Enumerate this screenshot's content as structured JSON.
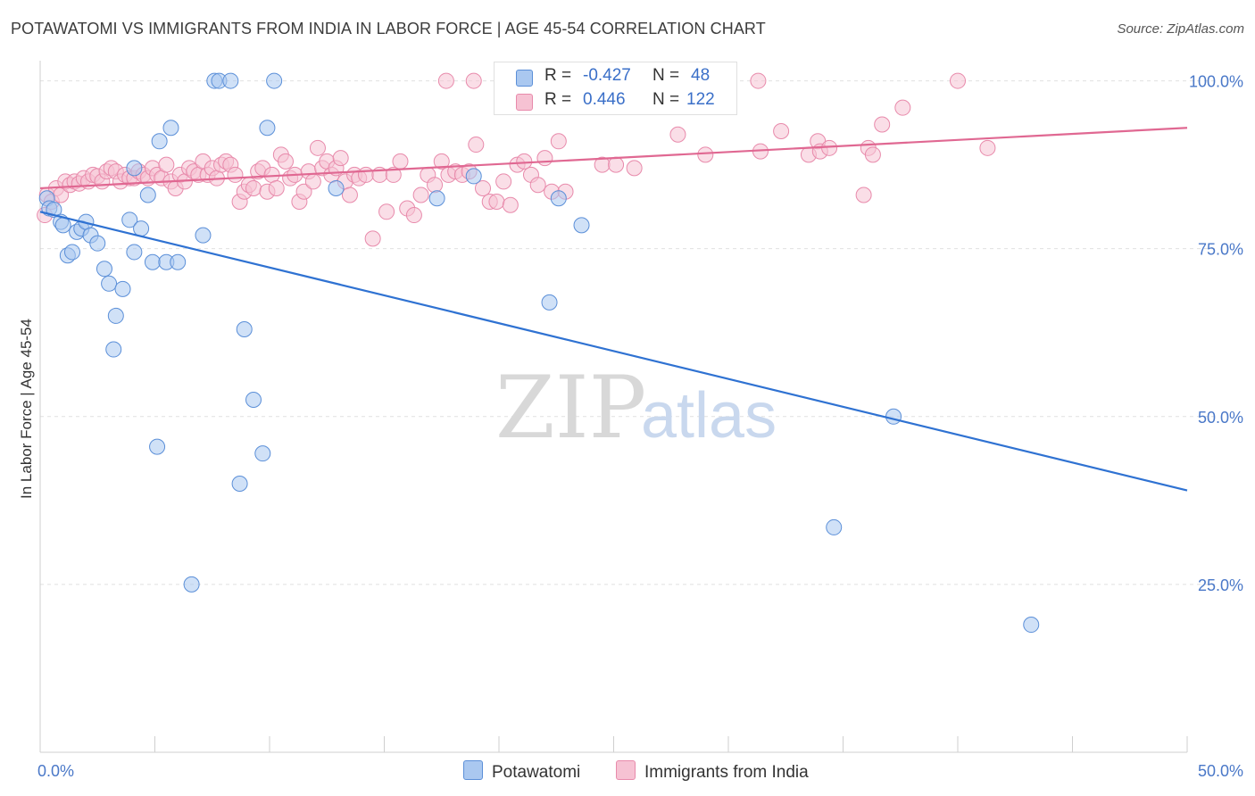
{
  "title": "POTAWATOMI VS IMMIGRANTS FROM INDIA IN LABOR FORCE | AGE 45-54 CORRELATION CHART",
  "source": "Source: ZipAtlas.com",
  "watermark": {
    "zip": "ZIP",
    "atlas": "atlas"
  },
  "colors": {
    "blue_fill": "#aac8f0",
    "blue_stroke": "#5b8fd8",
    "blue_line": "#2f72d2",
    "pink_fill": "#f6c2d3",
    "pink_stroke": "#e88aab",
    "pink_line": "#e06892",
    "grid": "#e0e0e0",
    "tick_text": "#4a78c8"
  },
  "legend": {
    "r_label": "R =",
    "n_label": "N =",
    "blue": {
      "r": "-0.427",
      "n": "48"
    },
    "pink": {
      "r": "0.446",
      "n": "122"
    }
  },
  "chart_data": {
    "type": "scatter",
    "title": "POTAWATOMI VS IMMIGRANTS FROM INDIA IN LABOR FORCE | AGE 45-54 CORRELATION CHART",
    "xlabel": "",
    "ylabel": "In Labor Force | Age 45-54",
    "xlim": [
      0,
      50
    ],
    "ylim": [
      0,
      103
    ],
    "x_tick_labels": [
      "0.0%",
      "50.0%"
    ],
    "y_ticks": [
      25,
      50,
      75,
      100
    ],
    "y_tick_labels": [
      "25.0%",
      "50.0%",
      "75.0%",
      "100.0%"
    ],
    "grid": true,
    "legend_position": "bottom",
    "series": [
      {
        "name": "Potawatomi",
        "color": "blue",
        "points": [
          [
            0.3,
            82.5
          ],
          [
            0.4,
            81
          ],
          [
            0.6,
            80.8
          ],
          [
            0.9,
            79
          ],
          [
            1,
            78.5
          ],
          [
            1.2,
            74
          ],
          [
            1.4,
            74.5
          ],
          [
            1.6,
            77.5
          ],
          [
            1.8,
            78
          ],
          [
            2,
            79
          ],
          [
            2.2,
            77
          ],
          [
            2.5,
            75.8
          ],
          [
            2.8,
            72
          ],
          [
            3,
            69.8
          ],
          [
            3.3,
            65
          ],
          [
            3.6,
            69
          ],
          [
            3.2,
            60
          ],
          [
            3.9,
            79.3
          ],
          [
            4.1,
            74.5
          ],
          [
            4.4,
            78
          ],
          [
            4.1,
            87
          ],
          [
            4.7,
            83
          ],
          [
            4.9,
            73
          ],
          [
            5.2,
            91
          ],
          [
            5.5,
            73
          ],
          [
            5.7,
            93
          ],
          [
            6,
            73
          ],
          [
            7.1,
            77
          ],
          [
            7.6,
            100
          ],
          [
            7.8,
            100
          ],
          [
            8.3,
            100
          ],
          [
            8.9,
            63
          ],
          [
            9.3,
            52.5
          ],
          [
            9.9,
            93
          ],
          [
            10.2,
            100
          ],
          [
            5.1,
            45.5
          ],
          [
            6.6,
            25
          ],
          [
            8.7,
            40
          ],
          [
            9.7,
            44.5
          ],
          [
            12.9,
            84
          ],
          [
            17.3,
            82.5
          ],
          [
            18.9,
            85.8
          ],
          [
            22.6,
            82.5
          ],
          [
            22.2,
            67
          ],
          [
            23.6,
            78.5
          ],
          [
            37.2,
            50
          ],
          [
            34.6,
            33.5
          ],
          [
            43.2,
            19
          ]
        ],
        "trend": {
          "x": [
            0,
            50
          ],
          "y": [
            80.5,
            39
          ]
        }
      },
      {
        "name": "Immigrants from India",
        "color": "pink",
        "points": [
          [
            0.2,
            80
          ],
          [
            0.3,
            83
          ],
          [
            0.5,
            82
          ],
          [
            0.7,
            84
          ],
          [
            0.9,
            83
          ],
          [
            1.1,
            85
          ],
          [
            1.3,
            84.5
          ],
          [
            1.5,
            85
          ],
          [
            1.7,
            84.7
          ],
          [
            1.9,
            85.5
          ],
          [
            2.1,
            85
          ],
          [
            2.3,
            86
          ],
          [
            2.5,
            85.8
          ],
          [
            2.7,
            85
          ],
          [
            2.9,
            86.5
          ],
          [
            3.1,
            87
          ],
          [
            3.3,
            86.5
          ],
          [
            3.5,
            85
          ],
          [
            3.7,
            86
          ],
          [
            3.9,
            85.5
          ],
          [
            4.1,
            85.5
          ],
          [
            4.3,
            86.5
          ],
          [
            4.5,
            86
          ],
          [
            4.7,
            85.5
          ],
          [
            4.9,
            87
          ],
          [
            5.1,
            86
          ],
          [
            5.3,
            85.5
          ],
          [
            5.5,
            87.5
          ],
          [
            5.7,
            85
          ],
          [
            5.9,
            84
          ],
          [
            6.1,
            86
          ],
          [
            6.3,
            85
          ],
          [
            6.5,
            87
          ],
          [
            6.7,
            86.5
          ],
          [
            6.9,
            86
          ],
          [
            7.1,
            88
          ],
          [
            7.3,
            86
          ],
          [
            7.5,
            87
          ],
          [
            7.7,
            85.5
          ],
          [
            7.9,
            87.5
          ],
          [
            8.1,
            88
          ],
          [
            8.3,
            87.5
          ],
          [
            8.5,
            86
          ],
          [
            8.7,
            82
          ],
          [
            8.9,
            83.5
          ],
          [
            9.1,
            84.5
          ],
          [
            9.3,
            84
          ],
          [
            9.5,
            86.5
          ],
          [
            9.7,
            87
          ],
          [
            9.9,
            83.5
          ],
          [
            10.1,
            86
          ],
          [
            10.3,
            84
          ],
          [
            10.5,
            89
          ],
          [
            10.7,
            88
          ],
          [
            10.9,
            85.5
          ],
          [
            11.1,
            86
          ],
          [
            11.3,
            82
          ],
          [
            11.5,
            83.5
          ],
          [
            11.7,
            86.5
          ],
          [
            11.9,
            85
          ],
          [
            12.1,
            90
          ],
          [
            12.3,
            87
          ],
          [
            12.5,
            88
          ],
          [
            12.7,
            86
          ],
          [
            12.9,
            87
          ],
          [
            13.1,
            88.5
          ],
          [
            13.3,
            85
          ],
          [
            13.5,
            83
          ],
          [
            13.7,
            86
          ],
          [
            13.9,
            85.5
          ],
          [
            14.2,
            86
          ],
          [
            14.5,
            76.5
          ],
          [
            14.8,
            86
          ],
          [
            15.1,
            80.5
          ],
          [
            15.4,
            86
          ],
          [
            15.7,
            88
          ],
          [
            16,
            81
          ],
          [
            16.3,
            80
          ],
          [
            16.6,
            83
          ],
          [
            16.9,
            86
          ],
          [
            17.2,
            84.5
          ],
          [
            17.5,
            88
          ],
          [
            17.8,
            86
          ],
          [
            18.1,
            86.5
          ],
          [
            18.4,
            86
          ],
          [
            18.7,
            86.5
          ],
          [
            19,
            90.5
          ],
          [
            19.3,
            84
          ],
          [
            19.6,
            82
          ],
          [
            19.9,
            82
          ],
          [
            20.2,
            85
          ],
          [
            20.5,
            81.5
          ],
          [
            20.8,
            87.5
          ],
          [
            21.1,
            88
          ],
          [
            21.4,
            86
          ],
          [
            21.7,
            84.5
          ],
          [
            22,
            88.5
          ],
          [
            22.3,
            83.5
          ],
          [
            22.6,
            91
          ],
          [
            22.9,
            83.5
          ],
          [
            24.5,
            87.5
          ],
          [
            25.1,
            87.5
          ],
          [
            25.9,
            87
          ],
          [
            27.8,
            92
          ],
          [
            29,
            89
          ],
          [
            31.4,
            89.5
          ],
          [
            32.3,
            92.5
          ],
          [
            33.5,
            89
          ],
          [
            33.9,
            91
          ],
          [
            34,
            89.5
          ],
          [
            34.4,
            90
          ],
          [
            35.9,
            83
          ],
          [
            36.1,
            90
          ],
          [
            36.3,
            89
          ],
          [
            36.7,
            93.5
          ],
          [
            37.6,
            96
          ],
          [
            40,
            100
          ],
          [
            41.3,
            90
          ],
          [
            17.7,
            100
          ],
          [
            18.9,
            100
          ],
          [
            31.3,
            100
          ],
          [
            20.9,
            100
          ]
        ],
        "trend": {
          "x": [
            0,
            50
          ],
          "y": [
            84,
            93
          ]
        }
      }
    ]
  },
  "bottom_legend": [
    {
      "label": "Potawatomi",
      "color": "blue"
    },
    {
      "label": "Immigrants from India",
      "color": "pink"
    }
  ]
}
